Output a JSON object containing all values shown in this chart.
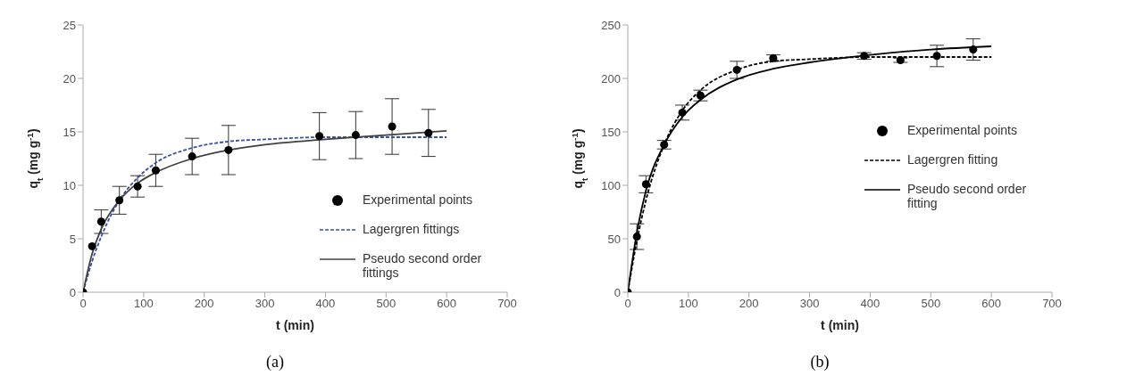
{
  "chart_data": [
    {
      "type": "scatter",
      "xlabel": "t (min)",
      "ylabel": "q$_{t}$ (mg g$^{-1}$)",
      "annotations": [
        "(a)"
      ],
      "xlim": [
        0,
        700
      ],
      "xticks": [
        0,
        100,
        200,
        300,
        400,
        500,
        600,
        700
      ],
      "ylim": [
        0,
        25
      ],
      "yticks": [
        0,
        5,
        10,
        15,
        20,
        25
      ],
      "grid": false,
      "legend": "bottom right",
      "series": [
        {
          "name": "Experimental points",
          "marker": "circle",
          "color": "#000000",
          "x": [
            0,
            15,
            30,
            60,
            90,
            120,
            180,
            240,
            390,
            450,
            510,
            570
          ],
          "values": [
            0,
            4.3,
            6.6,
            8.6,
            9.9,
            11.4,
            12.7,
            13.3,
            14.6,
            14.7,
            15.5,
            14.9
          ],
          "errors": [
            null,
            null,
            1.1,
            1.3,
            1.0,
            1.5,
            1.7,
            2.3,
            2.2,
            2.2,
            2.6,
            2.2
          ]
        },
        {
          "name": "Lagergren fittings",
          "type": "line",
          "marker": "none",
          "line_style": "dashed",
          "color": "#3a4fa0",
          "x": [
            0,
            15,
            30,
            60,
            90,
            120,
            180,
            240,
            300,
            400,
            500,
            600
          ],
          "values": [
            0,
            2.9,
            5.2,
            8.6,
            10.7,
            12.1,
            13.5,
            14.1,
            14.3,
            14.5,
            14.5,
            14.5
          ]
        },
        {
          "name": "Pseudo second order fittings",
          "type": "line",
          "marker": "none",
          "line_style": "solid",
          "color": "#404040",
          "x": [
            0,
            15,
            30,
            60,
            90,
            120,
            180,
            240,
            300,
            400,
            500,
            600
          ],
          "values": [
            0,
            3.6,
            5.9,
            8.6,
            10.2,
            11.2,
            12.5,
            13.3,
            13.8,
            14.3,
            14.7,
            15.1
          ]
        }
      ]
    },
    {
      "type": "scatter",
      "xlabel": "t (min)",
      "ylabel": "q$_{t}$ (mg g$^{-1}$)",
      "annotations": [
        "(b)"
      ],
      "xlim": [
        0,
        700
      ],
      "xticks": [
        0,
        100,
        200,
        300,
        400,
        500,
        600,
        700
      ],
      "ylim": [
        0,
        250
      ],
      "yticks": [
        0,
        50,
        100,
        150,
        200,
        250
      ],
      "grid": false,
      "legend": "right",
      "series": [
        {
          "name": "Experimental points",
          "marker": "circle",
          "color": "#000000",
          "x": [
            0,
            15,
            30,
            60,
            90,
            120,
            180,
            240,
            390,
            450,
            510,
            570
          ],
          "values": [
            0,
            52,
            101,
            138,
            168,
            184,
            208,
            219,
            221,
            217,
            221,
            227
          ],
          "errors": [
            null,
            12,
            8,
            4,
            7,
            5,
            8,
            3,
            3,
            2,
            10,
            10
          ]
        },
        {
          "name": "Lagergren fitting",
          "type": "line",
          "marker": "none",
          "line_style": "dashed",
          "color": "#000000",
          "x": [
            0,
            15,
            30,
            60,
            90,
            120,
            180,
            240,
            300,
            400,
            500,
            600
          ],
          "values": [
            0,
            48,
            86,
            138,
            170,
            189,
            208,
            216,
            218,
            220,
            220,
            220
          ]
        },
        {
          "name": "Pseudo second order fitting",
          "type": "line",
          "marker": "none",
          "line_style": "solid",
          "color": "#000000",
          "x": [
            0,
            15,
            30,
            60,
            90,
            120,
            180,
            240,
            300,
            400,
            500,
            600
          ],
          "values": [
            0,
            56,
            95,
            138,
            164,
            180,
            199,
            209,
            215,
            222,
            227,
            230
          ]
        }
      ]
    }
  ]
}
